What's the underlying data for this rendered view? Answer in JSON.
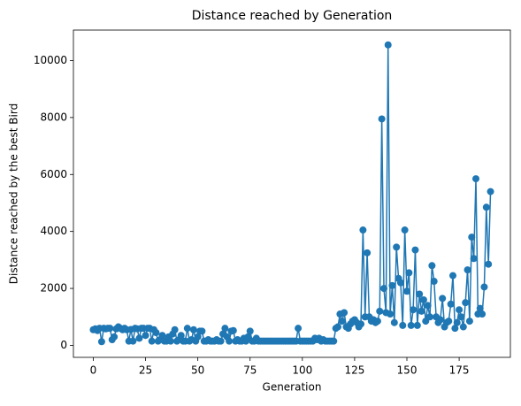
{
  "chart_data": {
    "type": "line",
    "title": "Distance reached by Generation",
    "xlabel": "Generation",
    "ylabel": "Distance reached by the best Bird",
    "x": [
      0,
      1,
      2,
      3,
      4,
      5,
      6,
      7,
      8,
      9,
      10,
      11,
      12,
      13,
      14,
      15,
      16,
      17,
      18,
      19,
      20,
      21,
      22,
      23,
      24,
      25,
      26,
      27,
      28,
      29,
      30,
      31,
      32,
      33,
      34,
      35,
      36,
      37,
      38,
      39,
      40,
      41,
      42,
      43,
      44,
      45,
      46,
      47,
      48,
      49,
      50,
      51,
      52,
      53,
      54,
      55,
      56,
      57,
      58,
      59,
      60,
      61,
      62,
      63,
      64,
      65,
      66,
      67,
      68,
      69,
      70,
      71,
      72,
      73,
      74,
      75,
      76,
      77,
      78,
      79,
      80,
      81,
      82,
      83,
      84,
      85,
      86,
      87,
      88,
      89,
      90,
      91,
      92,
      93,
      94,
      95,
      96,
      97,
      98,
      99,
      100,
      101,
      102,
      103,
      104,
      105,
      106,
      107,
      108,
      109,
      110,
      111,
      112,
      113,
      114,
      115,
      116,
      117,
      118,
      119,
      120,
      121,
      122,
      123,
      124,
      125,
      126,
      127,
      128,
      129,
      130,
      131,
      132,
      133,
      134,
      135,
      136,
      137,
      138,
      139,
      140,
      141,
      142,
      143,
      144,
      145,
      146,
      147,
      148,
      149,
      150,
      151,
      152,
      153,
      154,
      155,
      156,
      157,
      158,
      159,
      160,
      161,
      162,
      163,
      164,
      165,
      166,
      167,
      168,
      169,
      170,
      171,
      172,
      173,
      174,
      175,
      176,
      177,
      178,
      179,
      180,
      181,
      182,
      183,
      184,
      185,
      186,
      187,
      188,
      189,
      190
    ],
    "series": [
      {
        "name": "distance",
        "color": "#1f77b4",
        "values": [
          550,
          580,
          520,
          600,
          130,
          600,
          580,
          600,
          600,
          200,
          300,
          580,
          650,
          600,
          550,
          600,
          550,
          150,
          560,
          150,
          600,
          580,
          250,
          600,
          600,
          350,
          600,
          600,
          150,
          550,
          450,
          150,
          200,
          350,
          150,
          150,
          300,
          150,
          400,
          550,
          150,
          200,
          350,
          150,
          150,
          600,
          150,
          200,
          550,
          150,
          300,
          500,
          500,
          150,
          150,
          200,
          150,
          150,
          150,
          200,
          150,
          150,
          400,
          600,
          300,
          150,
          500,
          520,
          150,
          200,
          150,
          150,
          250,
          150,
          300,
          500,
          150,
          150,
          250,
          150,
          150,
          150,
          150,
          150,
          150,
          150,
          150,
          150,
          150,
          150,
          150,
          150,
          150,
          150,
          150,
          150,
          150,
          150,
          600,
          150,
          150,
          150,
          150,
          150,
          150,
          150,
          250,
          200,
          250,
          150,
          200,
          150,
          150,
          150,
          150,
          150,
          600,
          650,
          1100,
          850,
          1150,
          650,
          600,
          750,
          850,
          900,
          800,
          650,
          750,
          4050,
          1000,
          3250,
          1000,
          850,
          900,
          800,
          850,
          1200,
          7950,
          2000,
          1150,
          10550,
          1100,
          2100,
          800,
          3450,
          2350,
          2200,
          700,
          4050,
          1900,
          2550,
          700,
          1250,
          3350,
          700,
          1800,
          1200,
          1600,
          850,
          1400,
          1000,
          2800,
          2250,
          1000,
          800,
          900,
          1650,
          650,
          800,
          850,
          1450,
          2450,
          600,
          800,
          1250,
          1000,
          650,
          1500,
          2650,
          850,
          3800,
          3050,
          5850,
          1100,
          1300,
          1100,
          2050,
          4850,
          2850,
          5400
        ]
      }
    ],
    "xlim": [
      -9.5,
      199.5
    ],
    "xticks": [
      0,
      25,
      50,
      75,
      100,
      125,
      150,
      175
    ],
    "ylim": [
      -420,
      11070
    ],
    "yticks": [
      0,
      2000,
      4000,
      6000,
      8000,
      10000
    ],
    "grid": false
  }
}
